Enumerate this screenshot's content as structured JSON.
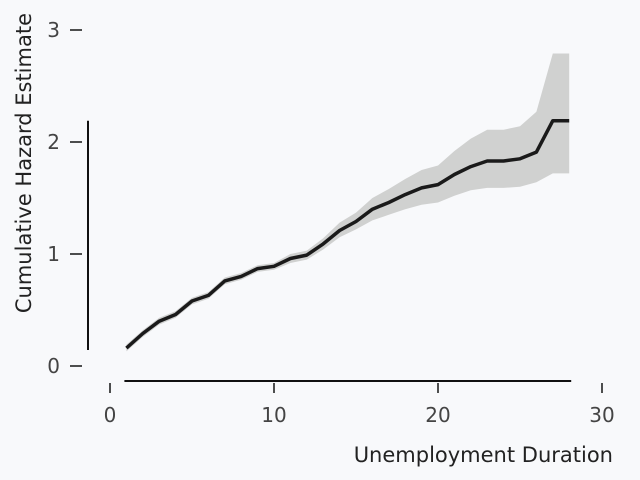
{
  "chart_data": {
    "type": "line",
    "title": "",
    "xlabel": "Unemployment Duration",
    "ylabel": "Cumulative Hazard Estimate",
    "xlim": [
      0,
      30
    ],
    "ylim": [
      0,
      3
    ],
    "xticks": [
      0,
      10,
      20,
      30
    ],
    "yticks": [
      0,
      1,
      2,
      3
    ],
    "grid": false,
    "legend": "none",
    "colors": {
      "line": "#1a1a1a",
      "band": "#d0d1d0",
      "axis": "#111111",
      "background": "#f8f9fb"
    },
    "series": [
      {
        "x": [
          1,
          2,
          3,
          4,
          5,
          6,
          7,
          8,
          9,
          10,
          11,
          12,
          13,
          14,
          15,
          16,
          17,
          18,
          19,
          20,
          21,
          22,
          23,
          24,
          25,
          26,
          27,
          28
        ],
        "y": [
          0.16,
          0.29,
          0.4,
          0.46,
          0.58,
          0.63,
          0.76,
          0.8,
          0.87,
          0.89,
          0.96,
          0.99,
          1.09,
          1.21,
          1.29,
          1.4,
          1.46,
          1.53,
          1.59,
          1.62,
          1.71,
          1.78,
          1.83,
          1.83,
          1.85,
          1.91,
          2.19,
          2.19
        ],
        "lower": [
          0.13,
          0.26,
          0.37,
          0.43,
          0.55,
          0.6,
          0.73,
          0.77,
          0.84,
          0.86,
          0.92,
          0.95,
          1.04,
          1.15,
          1.22,
          1.3,
          1.35,
          1.4,
          1.44,
          1.46,
          1.52,
          1.57,
          1.59,
          1.59,
          1.6,
          1.64,
          1.72,
          1.72
        ],
        "upper": [
          0.19,
          0.32,
          0.43,
          0.49,
          0.61,
          0.66,
          0.79,
          0.83,
          0.9,
          0.92,
          1.0,
          1.03,
          1.14,
          1.28,
          1.37,
          1.5,
          1.58,
          1.67,
          1.75,
          1.79,
          1.92,
          2.03,
          2.11,
          2.11,
          2.14,
          2.27,
          2.79,
          2.79
        ]
      }
    ]
  }
}
